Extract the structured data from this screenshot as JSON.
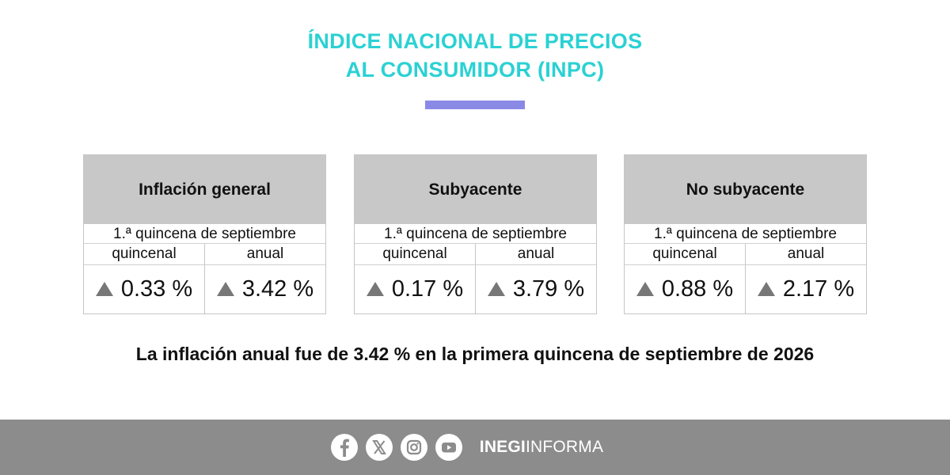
{
  "title": {
    "line1": "ÍNDICE NACIONAL DE PRECIOS",
    "line2": "AL CONSUMIDOR (INPC)"
  },
  "accent_color": "#8a8ae6",
  "title_color": "#2bd1d3",
  "cards": [
    {
      "heading": "Inflación general",
      "period": "1.ª quincena de septiembre",
      "biweekly_label": "quincenal",
      "annual_label": "anual",
      "biweekly_value": "0.33 %",
      "annual_value": "3.42 %"
    },
    {
      "heading": "Subyacente",
      "period": "1.ª quincena de septiembre",
      "biweekly_label": "quincenal",
      "annual_label": "anual",
      "biweekly_value": "0.17 %",
      "annual_value": "3.79 %"
    },
    {
      "heading": "No subyacente",
      "period": "1.ª quincena de septiembre",
      "biweekly_label": "quincenal",
      "annual_label": "anual",
      "biweekly_value": "0.88 %",
      "annual_value": "2.17 %"
    }
  ],
  "headline": "La inflación anual fue de 3.42 % en la primera quincena de septiembre de 2026",
  "footer": {
    "icons": [
      "facebook-icon",
      "x-icon",
      "instagram-icon",
      "youtube-icon"
    ],
    "brand_bold": "INEGI",
    "brand_regular": "INFORMA"
  }
}
